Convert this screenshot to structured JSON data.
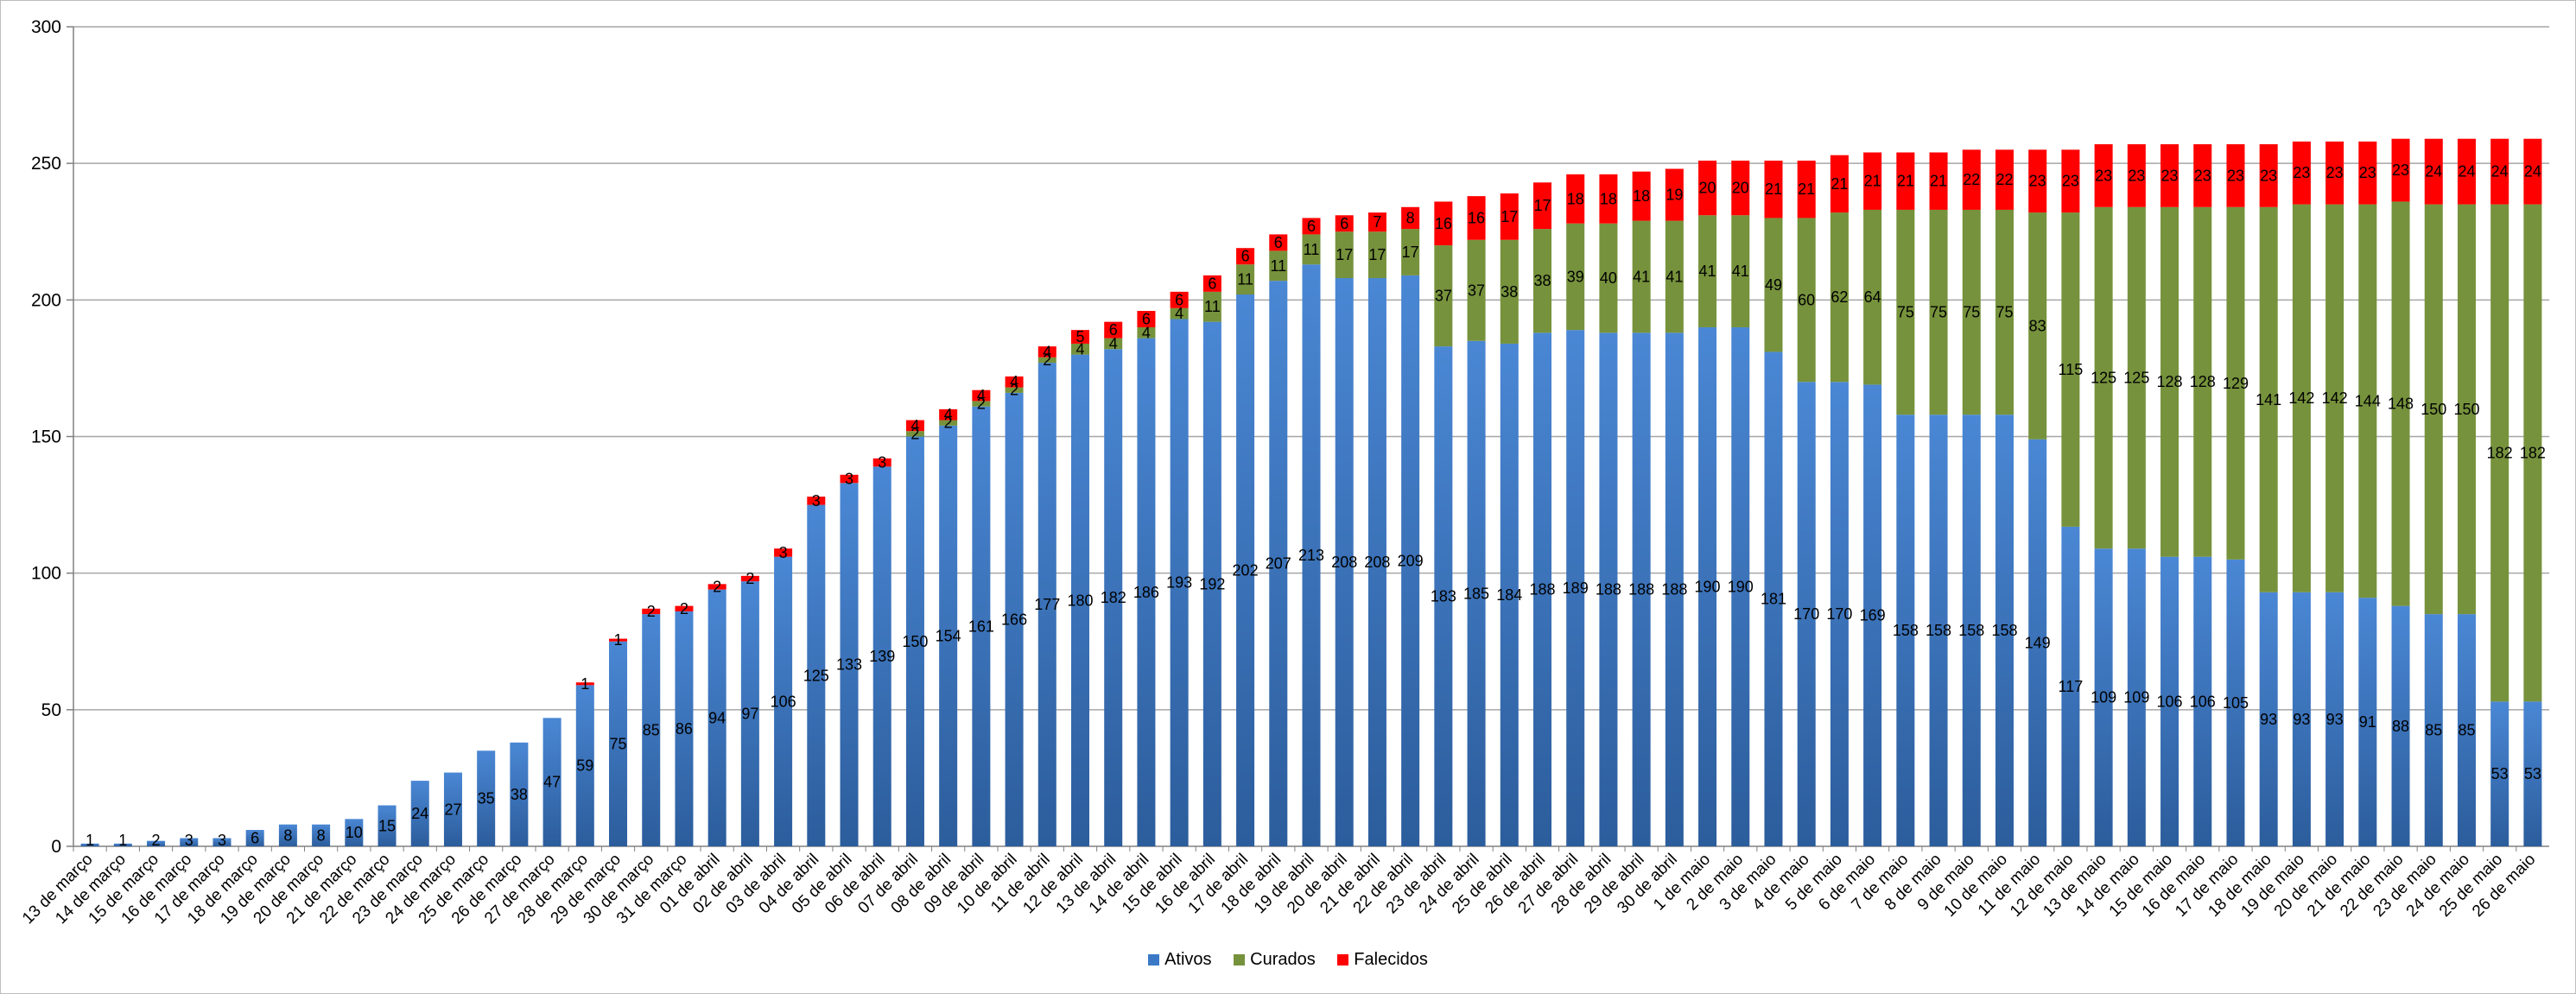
{
  "colors": {
    "ativos": "#3b79c6",
    "curados": "#76923c",
    "falecidos": "#ff0000",
    "grid": "#a6a6a6",
    "axis": "#808080"
  },
  "chart_data": {
    "type": "bar",
    "stacked": true,
    "ylim": [
      0,
      300
    ],
    "yticks": [
      0,
      50,
      100,
      150,
      200,
      250,
      300
    ],
    "grid": true,
    "legend_position": "bottom",
    "categories": [
      "13 de março",
      "14 de março",
      "15 de março",
      "16 de março",
      "17 de março",
      "18 de março",
      "19 de março",
      "20 de março",
      "21 de março",
      "22 de março",
      "23 de março",
      "24 de março",
      "25 de março",
      "26 de março",
      "27 de março",
      "28 de março",
      "29 de março",
      "30 de março",
      "31 de março",
      "01 de abril",
      "02 de abril",
      "03 de abril",
      "04 de abril",
      "05 de abril",
      "06 de abril",
      "07 de abril",
      "08 de abril",
      "09 de abril",
      "10 de abril",
      "11 de abril",
      "12 de abril",
      "13 de abril",
      "14 de abril",
      "15 de abril",
      "16 de abril",
      "17 de abril",
      "18 de abril",
      "19 de abril",
      "20 de abril",
      "21 de abril",
      "22 de abril",
      "23 de abril",
      "24 de abril",
      "25 de abril",
      "26 de abril",
      "27 de abril",
      "28 de abril",
      "29 de abril",
      "30 de abril",
      "1 de maio",
      "2 de maio",
      "3 de maio",
      "4 de maio",
      "5 de maio",
      "6 de maio",
      "7 de maio",
      "8 de maio",
      "9 de maio",
      "10 de maio",
      "11 de maio",
      "12 de maio",
      "13 de maio",
      "14 de maio",
      "15 de maio",
      "16 de maio",
      "17 de maio",
      "18 de maio",
      "19 de maio",
      "20 de maio",
      "21 de maio",
      "22 de maio",
      "23 de maio",
      "24 de maio",
      "25 de maio",
      "26 de maio"
    ],
    "series": [
      {
        "name": "Ativos",
        "values": [
          1,
          1,
          2,
          3,
          3,
          6,
          8,
          8,
          10,
          15,
          24,
          27,
          35,
          38,
          47,
          59,
          75,
          85,
          86,
          94,
          97,
          106,
          125,
          133,
          139,
          150,
          154,
          161,
          166,
          177,
          180,
          182,
          186,
          193,
          192,
          202,
          207,
          213,
          208,
          208,
          209,
          183,
          185,
          184,
          188,
          189,
          188,
          188,
          188,
          190,
          190,
          181,
          170,
          170,
          169,
          158,
          158,
          158,
          158,
          149,
          117,
          109,
          109,
          106,
          106,
          105,
          93,
          93,
          93,
          91,
          88,
          85,
          85,
          53,
          53
        ]
      },
      {
        "name": "Curados",
        "values": [
          0,
          0,
          0,
          0,
          0,
          0,
          0,
          0,
          0,
          0,
          0,
          0,
          0,
          0,
          0,
          0,
          0,
          0,
          0,
          0,
          0,
          0,
          0,
          0,
          0,
          2,
          2,
          2,
          2,
          2,
          4,
          4,
          4,
          4,
          11,
          11,
          11,
          11,
          17,
          17,
          17,
          37,
          37,
          38,
          38,
          39,
          40,
          41,
          41,
          41,
          41,
          49,
          60,
          62,
          64,
          75,
          75,
          75,
          75,
          83,
          115,
          125,
          125,
          128,
          128,
          129,
          141,
          142,
          142,
          144,
          148,
          150,
          150,
          182,
          182
        ]
      },
      {
        "name": "Falecidos",
        "values": [
          0,
          0,
          0,
          0,
          0,
          0,
          0,
          0,
          0,
          0,
          0,
          0,
          0,
          0,
          0,
          1,
          1,
          2,
          2,
          2,
          2,
          3,
          3,
          3,
          3,
          4,
          4,
          4,
          4,
          4,
          5,
          6,
          6,
          6,
          6,
          6,
          6,
          6,
          6,
          7,
          8,
          16,
          16,
          17,
          17,
          18,
          18,
          18,
          19,
          20,
          20,
          21,
          21,
          21,
          21,
          21,
          21,
          22,
          22,
          23,
          23,
          23,
          23,
          23,
          23,
          23,
          23,
          23,
          23,
          23,
          23,
          24,
          24,
          24,
          24
        ]
      }
    ]
  }
}
